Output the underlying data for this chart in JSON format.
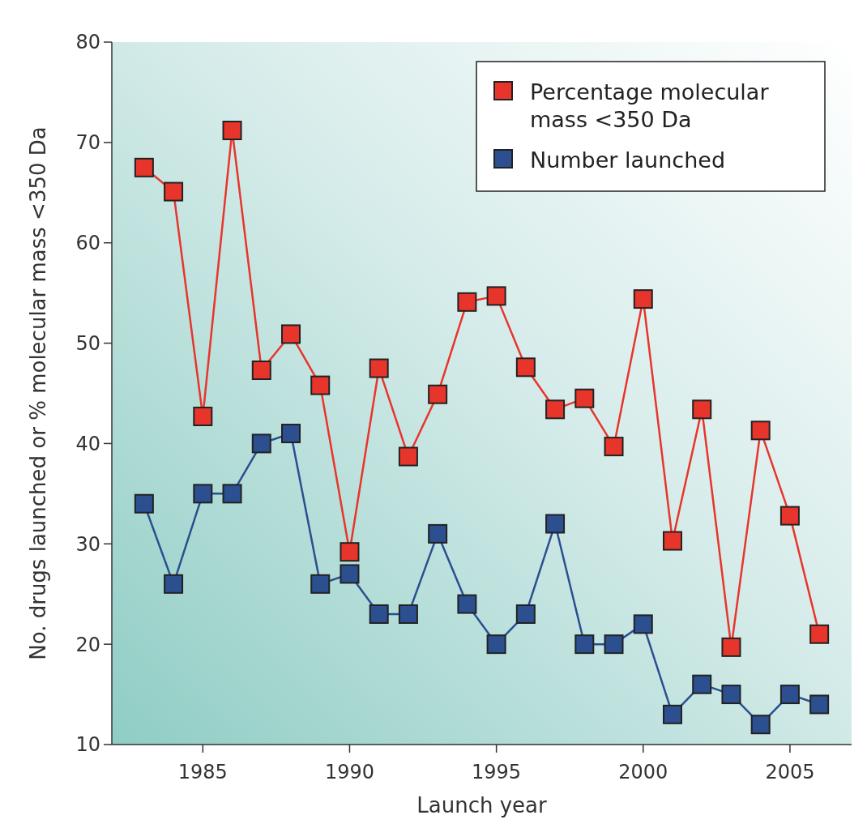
{
  "chart_data": {
    "type": "line",
    "xlabel": "Launch year",
    "ylabel": "No. drugs launched or % molecular mass <350 Da",
    "x": [
      1983,
      1984,
      1985,
      1986,
      1987,
      1988,
      1989,
      1990,
      1991,
      1992,
      1993,
      1994,
      1995,
      1996,
      1997,
      1998,
      1999,
      2000,
      2001,
      2002,
      2003,
      2004,
      2005,
      2006
    ],
    "series": [
      {
        "name": "Percentage molecular mass <350 Da",
        "color": "#e8352b",
        "values": [
          67.5,
          65.1,
          42.7,
          71.2,
          47.3,
          50.9,
          45.8,
          29.2,
          47.5,
          38.7,
          44.9,
          54.1,
          54.7,
          47.6,
          43.4,
          44.5,
          39.7,
          54.4,
          30.3,
          43.4,
          19.7,
          41.3,
          32.8,
          21.0
        ]
      },
      {
        "name": "Number launched",
        "color": "#2b4f8f",
        "values": [
          34,
          26,
          35,
          35,
          40,
          41,
          26,
          27,
          23,
          23,
          31,
          24,
          20,
          23,
          32,
          20,
          20,
          22,
          13,
          16,
          15,
          12,
          15,
          14
        ]
      }
    ],
    "xlim": [
      1981.9,
      2007.1
    ],
    "xticks": [
      1985,
      1990,
      1995,
      2000,
      2005
    ],
    "ylim": [
      10,
      80
    ],
    "yticks": [
      10,
      20,
      30,
      40,
      50,
      60,
      70,
      80
    ],
    "marker": "square",
    "legend": "top right",
    "grid": false
  }
}
